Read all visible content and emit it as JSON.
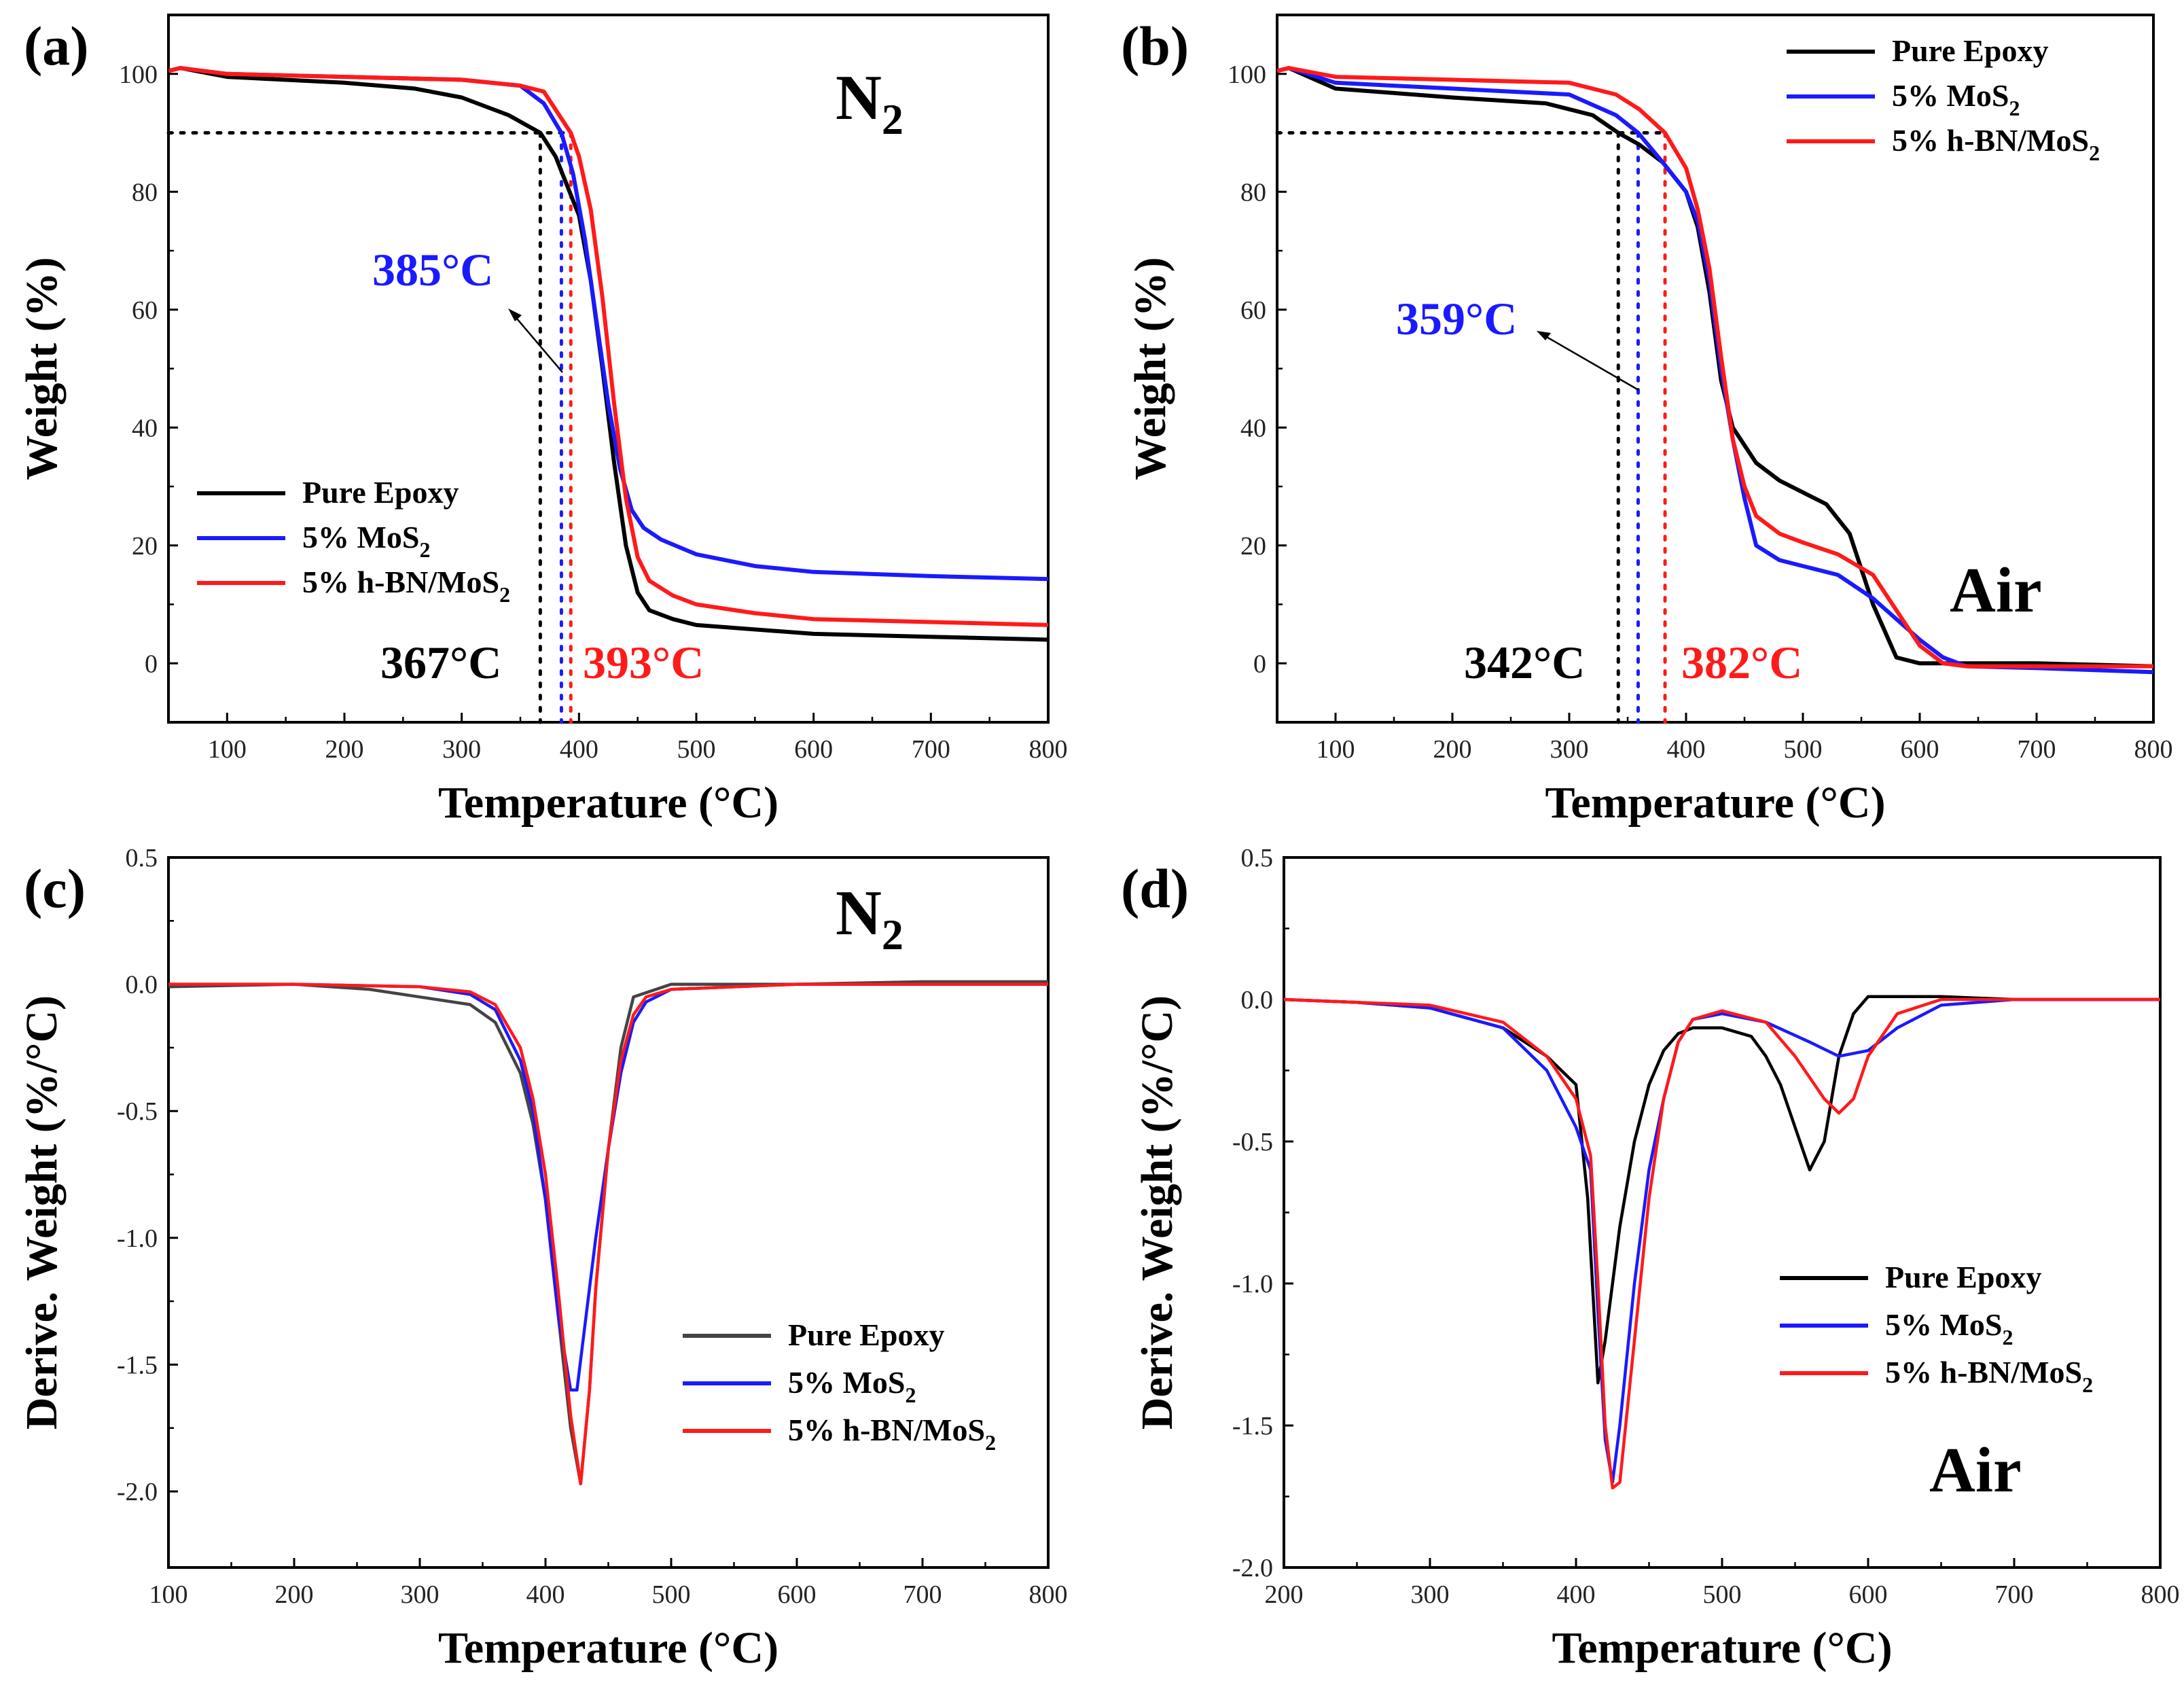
{
  "figure": {
    "colors": {
      "pure_epoxy": "#000000",
      "mos2": "#1a1aff",
      "hbn_mos2": "#ff1a1a",
      "pure_epoxy_dtg_n2": "#444444"
    },
    "legend_labels": [
      "Pure Epoxy",
      "5% MoS",
      "5% h-BN/MoS"
    ],
    "legend_subscript": "2"
  },
  "chart_data": [
    {
      "panel": "(a)",
      "type": "line",
      "atmosphere": "N",
      "atmosphere_subscript": "2",
      "xlabel": "Temperature (°C)",
      "ylabel": "Weight (%)",
      "xlim": [
        50,
        800
      ],
      "ylim": [
        -10,
        110
      ],
      "xticks": [
        100,
        200,
        300,
        400,
        500,
        600,
        700,
        800
      ],
      "yticks": [
        0,
        20,
        40,
        60,
        80,
        100
      ],
      "legend_position": "bottom-left",
      "reference_line": {
        "y": 90,
        "x_start": 50
      },
      "onset_markers": [
        {
          "series": "Pure Epoxy",
          "x": 367,
          "label": "367°C"
        },
        {
          "series": "5% MoS2",
          "x": 385,
          "label": "385°C"
        },
        {
          "series": "5% h-BN/MoS2",
          "x": 393,
          "label": "393°C"
        }
      ],
      "series": [
        {
          "name": "Pure Epoxy",
          "x": [
            50,
            60,
            100,
            200,
            260,
            300,
            340,
            367,
            380,
            400,
            410,
            420,
            430,
            440,
            450,
            460,
            480,
            500,
            600,
            700,
            800
          ],
          "values": [
            100.5,
            101,
            99.5,
            98.5,
            97.5,
            96,
            93,
            90,
            86,
            76,
            65,
            50,
            34,
            20,
            12,
            9,
            7.5,
            6.5,
            5,
            4.5,
            4
          ]
        },
        {
          "name": "5% MoS2",
          "x": [
            50,
            60,
            100,
            200,
            300,
            350,
            370,
            385,
            395,
            405,
            415,
            425,
            435,
            445,
            455,
            470,
            500,
            550,
            600,
            700,
            800
          ],
          "values": [
            100.5,
            101,
            100,
            99.5,
            99,
            98,
            95,
            90,
            83,
            72,
            58,
            44,
            33,
            26,
            23,
            21,
            18.5,
            16.5,
            15.5,
            14.8,
            14.3
          ]
        },
        {
          "name": "5% h-BN/MoS2",
          "x": [
            50,
            60,
            100,
            200,
            300,
            350,
            370,
            393,
            400,
            410,
            420,
            430,
            440,
            450,
            460,
            480,
            500,
            550,
            600,
            700,
            800
          ],
          "values": [
            100.5,
            101,
            100,
            99.5,
            99,
            98,
            97,
            90,
            86,
            77,
            62,
            44,
            28,
            18,
            14,
            11.5,
            10,
            8.5,
            7.5,
            7,
            6.5
          ]
        }
      ]
    },
    {
      "panel": "(b)",
      "type": "line",
      "atmosphere": "Air",
      "xlabel": "Temperature (°C)",
      "ylabel": "Weight (%)",
      "xlim": [
        50,
        800
      ],
      "ylim": [
        -10,
        110
      ],
      "xticks": [
        100,
        200,
        300,
        400,
        500,
        600,
        700,
        800
      ],
      "yticks": [
        0,
        20,
        40,
        60,
        80,
        100
      ],
      "legend_position": "top-right",
      "reference_line": {
        "y": 90,
        "x_start": 50
      },
      "onset_markers": [
        {
          "series": "Pure Epoxy",
          "x": 342,
          "label": "342°C"
        },
        {
          "series": "5% MoS2",
          "x": 359,
          "label": "359°C"
        },
        {
          "series": "5% h-BN/MoS2",
          "x": 382,
          "label": "382°C"
        }
      ],
      "series": [
        {
          "name": "Pure Epoxy",
          "x": [
            50,
            60,
            100,
            200,
            280,
            320,
            342,
            360,
            380,
            400,
            410,
            420,
            430,
            440,
            460,
            480,
            500,
            520,
            540,
            560,
            580,
            600,
            700,
            800
          ],
          "values": [
            100.5,
            101,
            97.5,
            96,
            95,
            93,
            90,
            88,
            85,
            80,
            74,
            63,
            48,
            40,
            34,
            31,
            29,
            27,
            22,
            10,
            1,
            0,
            0,
            -0.5
          ]
        },
        {
          "name": "5% MoS2",
          "x": [
            50,
            60,
            100,
            200,
            300,
            340,
            359,
            380,
            400,
            410,
            420,
            430,
            440,
            450,
            460,
            480,
            500,
            530,
            560,
            600,
            620,
            640,
            700,
            800
          ],
          "values": [
            100.5,
            101,
            98.5,
            97.5,
            96.5,
            93,
            90,
            85,
            80,
            75,
            65,
            50,
            38,
            28,
            20,
            17.5,
            16.5,
            15,
            11,
            4,
            1,
            -0.5,
            -0.8,
            -1.5
          ]
        },
        {
          "name": "5% h-BN/MoS2",
          "x": [
            50,
            60,
            100,
            200,
            300,
            340,
            360,
            382,
            400,
            410,
            420,
            430,
            440,
            450,
            460,
            480,
            500,
            530,
            560,
            580,
            600,
            620,
            640,
            800
          ],
          "values": [
            100.5,
            101,
            99.5,
            99,
            98.5,
            96.5,
            94,
            90,
            84,
            77,
            67,
            52,
            38,
            30,
            25,
            22,
            20.5,
            18.5,
            15,
            9,
            3,
            0,
            -0.5,
            -0.5
          ]
        }
      ]
    },
    {
      "panel": "(c)",
      "type": "line",
      "atmosphere": "N",
      "atmosphere_subscript": "2",
      "xlabel": "Temperature (°C)",
      "ylabel": "Derive. Weight (%/°C)",
      "xlim": [
        100,
        800
      ],
      "ylim": [
        -2.3,
        0.5
      ],
      "xticks": [
        100,
        200,
        300,
        400,
        500,
        600,
        700,
        800
      ],
      "yticks": [
        -2.0,
        -1.5,
        -1.0,
        -0.5,
        0.0,
        0.5
      ],
      "ytick_labels": [
        "-2.0",
        "-1.5",
        "-1.0",
        "-0.5",
        "0.0",
        "0.5"
      ],
      "legend_position": "bottom-right",
      "series": [
        {
          "name": "Pure Epoxy",
          "x": [
            100,
            200,
            260,
            300,
            340,
            360,
            380,
            390,
            400,
            410,
            420,
            428,
            435,
            440,
            450,
            460,
            470,
            500,
            600,
            700,
            800
          ],
          "values": [
            -0.01,
            0,
            -0.02,
            -0.05,
            -0.08,
            -0.15,
            -0.35,
            -0.55,
            -0.85,
            -1.3,
            -1.75,
            -1.97,
            -1.6,
            -1.2,
            -0.65,
            -0.25,
            -0.05,
            0,
            0,
            0.01,
            0.01
          ]
        },
        {
          "name": "5% MoS2",
          "x": [
            100,
            200,
            300,
            340,
            360,
            380,
            390,
            400,
            410,
            420,
            425,
            430,
            440,
            450,
            460,
            470,
            480,
            500,
            600,
            700,
            800
          ],
          "values": [
            0,
            0,
            -0.01,
            -0.04,
            -0.1,
            -0.3,
            -0.5,
            -0.85,
            -1.3,
            -1.6,
            -1.6,
            -1.4,
            -1.0,
            -0.65,
            -0.35,
            -0.15,
            -0.07,
            -0.02,
            0,
            0,
            0
          ]
        },
        {
          "name": "5% h-BN/MoS2",
          "x": [
            100,
            200,
            300,
            340,
            360,
            380,
            390,
            400,
            410,
            420,
            428,
            435,
            440,
            450,
            460,
            470,
            480,
            500,
            600,
            700,
            800
          ],
          "values": [
            0,
            0,
            -0.01,
            -0.03,
            -0.08,
            -0.25,
            -0.45,
            -0.75,
            -1.2,
            -1.7,
            -1.97,
            -1.6,
            -1.2,
            -0.65,
            -0.3,
            -0.12,
            -0.05,
            -0.02,
            0,
            0,
            0
          ]
        }
      ]
    },
    {
      "panel": "(d)",
      "type": "line",
      "atmosphere": "Air",
      "xlabel": "Temperature (°C)",
      "ylabel": "Derive. Weight (%/°C)",
      "xlim": [
        200,
        800
      ],
      "ylim": [
        -2.0,
        0.5
      ],
      "xticks": [
        200,
        300,
        400,
        500,
        600,
        700,
        800
      ],
      "yticks": [
        -2.0,
        -1.5,
        -1.0,
        -0.5,
        0.0,
        0.5
      ],
      "ytick_labels": [
        "-2.0",
        "-1.5",
        "-1.0",
        "-0.5",
        "0.0",
        "0.5"
      ],
      "legend_position": "bottom-right",
      "series": [
        {
          "name": "Pure Epoxy",
          "x": [
            200,
            250,
            300,
            350,
            380,
            400,
            408,
            415,
            420,
            430,
            440,
            450,
            460,
            470,
            480,
            500,
            520,
            530,
            540,
            550,
            560,
            570,
            580,
            590,
            600,
            650,
            700,
            800
          ],
          "values": [
            0,
            -0.01,
            -0.03,
            -0.1,
            -0.2,
            -0.3,
            -0.7,
            -1.35,
            -1.2,
            -0.8,
            -0.5,
            -0.3,
            -0.18,
            -0.12,
            -0.1,
            -0.1,
            -0.13,
            -0.2,
            -0.3,
            -0.45,
            -0.6,
            -0.5,
            -0.2,
            -0.05,
            0.01,
            0.01,
            0,
            0
          ]
        },
        {
          "name": "5% MoS2",
          "x": [
            200,
            250,
            300,
            350,
            380,
            400,
            410,
            415,
            420,
            425,
            430,
            440,
            450,
            460,
            470,
            480,
            500,
            530,
            560,
            580,
            600,
            620,
            650,
            700,
            800
          ],
          "values": [
            0,
            -0.01,
            -0.03,
            -0.1,
            -0.25,
            -0.45,
            -0.6,
            -1.1,
            -1.55,
            -1.7,
            -1.5,
            -1.0,
            -0.6,
            -0.35,
            -0.15,
            -0.07,
            -0.05,
            -0.08,
            -0.15,
            -0.2,
            -0.18,
            -0.1,
            -0.02,
            0,
            0
          ]
        },
        {
          "name": "5% h-BN/MoS2",
          "x": [
            200,
            250,
            300,
            350,
            380,
            400,
            410,
            415,
            420,
            425,
            430,
            440,
            450,
            460,
            470,
            480,
            500,
            530,
            550,
            570,
            580,
            590,
            600,
            620,
            650,
            700,
            800
          ],
          "values": [
            0,
            -0.01,
            -0.02,
            -0.08,
            -0.2,
            -0.35,
            -0.55,
            -1.0,
            -1.5,
            -1.72,
            -1.7,
            -1.2,
            -0.7,
            -0.35,
            -0.15,
            -0.07,
            -0.04,
            -0.08,
            -0.2,
            -0.35,
            -0.4,
            -0.35,
            -0.2,
            -0.05,
            0,
            0,
            0
          ]
        }
      ]
    }
  ]
}
